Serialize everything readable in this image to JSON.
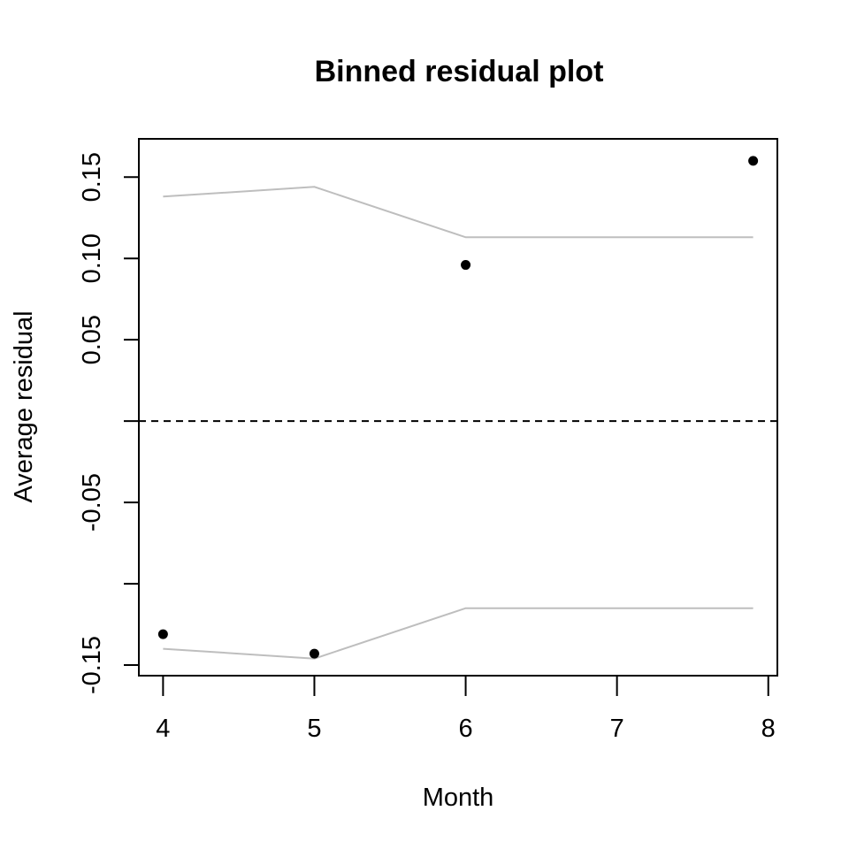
{
  "chart_data": {
    "type": "scatter",
    "title": "Binned residual plot",
    "xlabel": "Month",
    "ylabel": "Average residual",
    "xlim": [
      3.84,
      8.06
    ],
    "ylim": [
      -0.1565,
      0.1735
    ],
    "x_ticks": [
      4,
      5,
      6,
      7,
      8
    ],
    "x_tick_labels": [
      "4",
      "5",
      "6",
      "7",
      "8"
    ],
    "y_ticks": [
      -0.15,
      -0.1,
      -0.05,
      0.0,
      0.05,
      0.1,
      0.15
    ],
    "y_tick_labels": [
      "-0.15",
      "",
      "-0.05",
      "",
      "0.05",
      "0.10",
      "0.15"
    ],
    "points": {
      "x": [
        4,
        5,
        6,
        7.9
      ],
      "y": [
        -0.131,
        -0.143,
        0.096,
        0.16
      ]
    },
    "upper_bound": {
      "x": [
        4,
        5,
        6,
        7.9
      ],
      "y": [
        0.138,
        0.144,
        0.113,
        0.113
      ]
    },
    "lower_bound": {
      "x": [
        4,
        5,
        6,
        7.9
      ],
      "y": [
        -0.14,
        -0.146,
        -0.115,
        -0.115
      ]
    },
    "reference_line_y": 0,
    "colors": {
      "points": "#000000",
      "bounds": "#bebebe",
      "reference": "#000000",
      "frame": "#000000"
    },
    "grid": false,
    "legend": "none"
  }
}
